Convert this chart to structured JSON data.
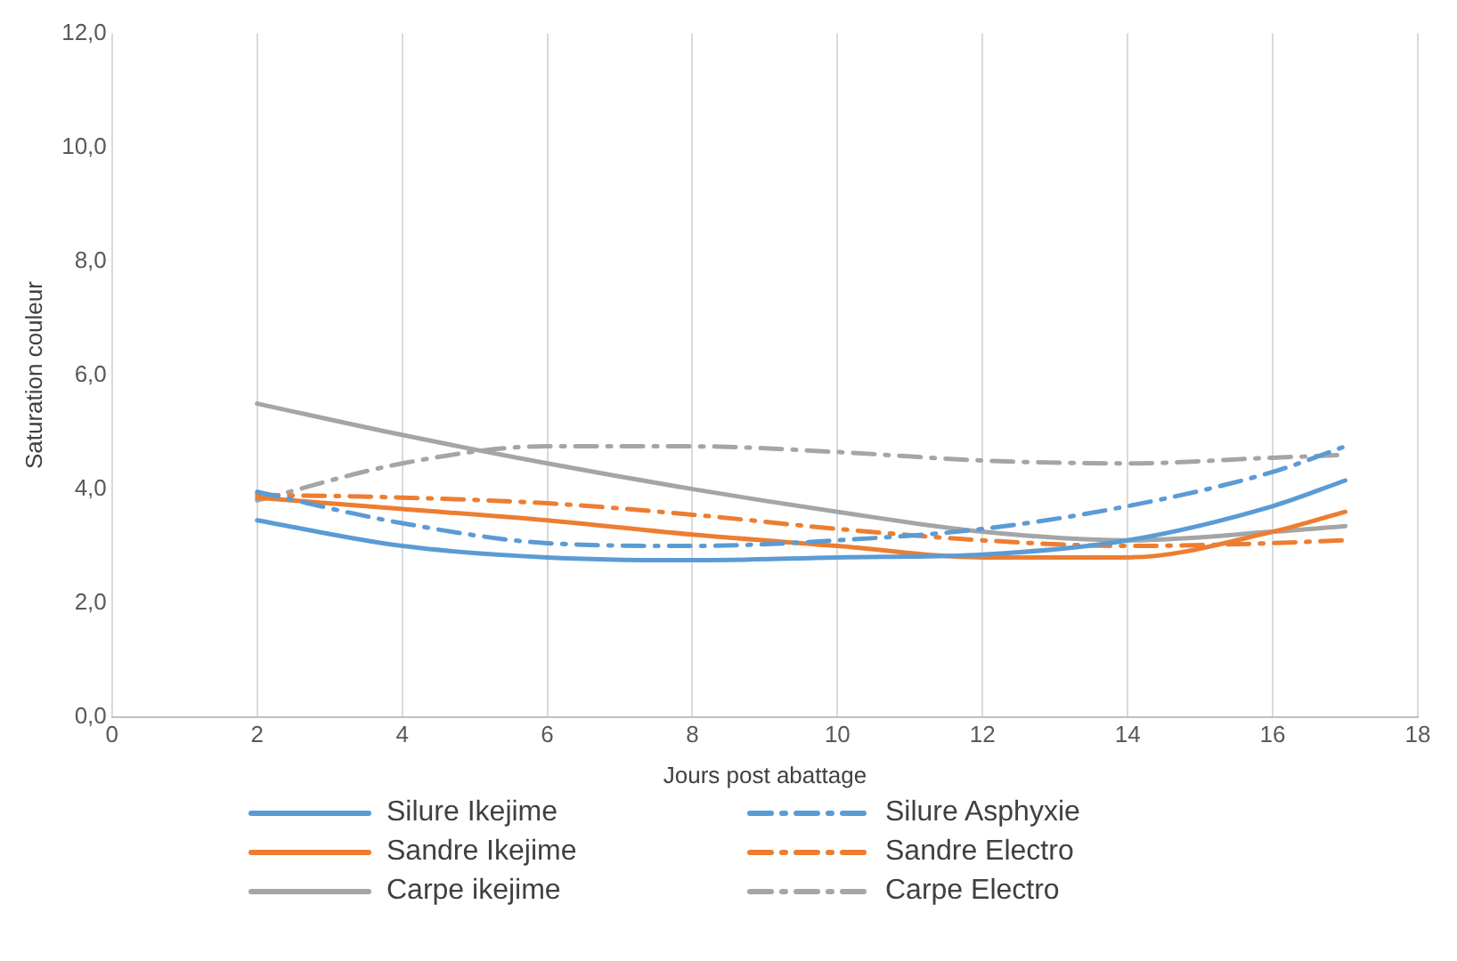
{
  "chart_data": {
    "type": "line",
    "xlabel": "Jours post abattage",
    "ylabel": "Saturation couleur",
    "x": [
      2,
      4,
      6,
      8,
      10,
      12,
      14,
      16,
      17
    ],
    "xlim": [
      0,
      18
    ],
    "xticks": [
      0,
      2,
      4,
      6,
      8,
      10,
      12,
      14,
      16,
      18
    ],
    "ylim": [
      0,
      12
    ],
    "yticks": [
      {
        "value": 0,
        "label": "0,0"
      },
      {
        "value": 2,
        "label": "2,0"
      },
      {
        "value": 4,
        "label": "4,0"
      },
      {
        "value": 6,
        "label": "6,0"
      },
      {
        "value": 8,
        "label": "8,0"
      },
      {
        "value": 10,
        "label": "10,0"
      },
      {
        "value": 12,
        "label": "12,0"
      }
    ],
    "grid": "x",
    "legend": "bottom",
    "marker": "none",
    "series": [
      {
        "name": "Silure Ikejime",
        "color": "#5b9bd5",
        "line_style": "solid",
        "values": [
          3.45,
          3.0,
          2.8,
          2.75,
          2.8,
          2.85,
          3.1,
          3.7,
          4.15
        ]
      },
      {
        "name": "Silure Asphyxie",
        "color": "#5b9bd5",
        "line_style": "dashed",
        "values": [
          3.95,
          3.4,
          3.05,
          3.0,
          3.1,
          3.3,
          3.7,
          4.3,
          4.75
        ]
      },
      {
        "name": "Sandre Ikejime",
        "color": "#ed7d31",
        "line_style": "solid",
        "values": [
          3.85,
          3.65,
          3.45,
          3.2,
          3.0,
          2.8,
          2.8,
          3.25,
          3.6
        ]
      },
      {
        "name": "Sandre Electro",
        "color": "#ed7d31",
        "line_style": "dashed",
        "values": [
          3.9,
          3.85,
          3.75,
          3.55,
          3.3,
          3.1,
          3.0,
          3.05,
          3.1
        ]
      },
      {
        "name": "Carpe ikejime",
        "color": "#a5a5a5",
        "line_style": "solid",
        "values": [
          5.5,
          4.95,
          4.45,
          4.0,
          3.6,
          3.25,
          3.1,
          3.25,
          3.35
        ]
      },
      {
        "name": "Carpe Electro",
        "color": "#a5a5a5",
        "line_style": "dashed",
        "values": [
          3.8,
          4.45,
          4.75,
          4.75,
          4.65,
          4.5,
          4.45,
          4.55,
          4.6
        ]
      }
    ]
  }
}
